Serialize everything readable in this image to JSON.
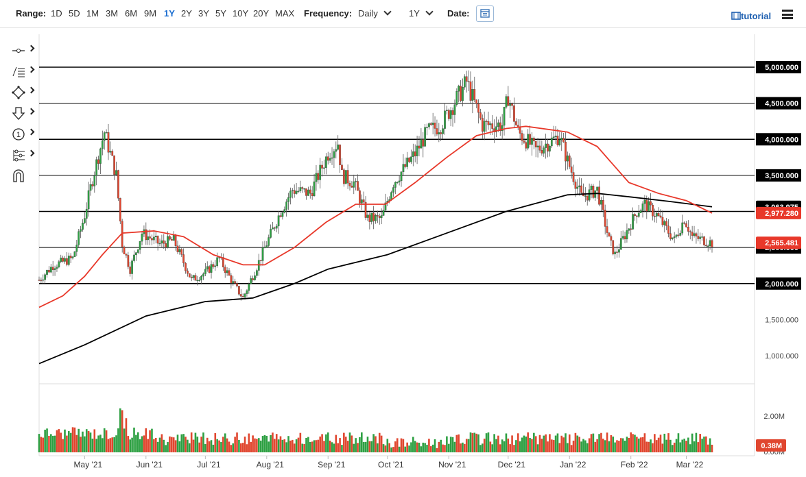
{
  "toolbar": {
    "range_label": "Range:",
    "ranges": [
      "1D",
      "5D",
      "1M",
      "3M",
      "6M",
      "9M",
      "1Y",
      "2Y",
      "3Y",
      "5Y",
      "10Y",
      "20Y",
      "MAX"
    ],
    "active_range": "1Y",
    "frequency_label": "Frequency:",
    "frequency_value": "Daily",
    "period_value": "1Y",
    "date_label": "Date:",
    "tutorial_label": "tutorial"
  },
  "tools": [
    "line-tool-icon",
    "fibonacci-tool-icon",
    "shape-tool-icon",
    "arrow-tool-icon",
    "annotation-tool-icon",
    "indicator-tool-icon",
    "magnet-tool-icon"
  ],
  "chart_data": {
    "type": "candlestick",
    "x_start": "2021-04-08",
    "x_end": "2022-03-14",
    "x_ticks": [
      "May '21",
      "Jun '21",
      "Jul '21",
      "Aug '21",
      "Sep '21",
      "Oct '21",
      "Nov '21",
      "Dec '21",
      "Jan '22",
      "Feb '22",
      "Mar '22"
    ],
    "y_ticks": [
      "5,000.000",
      "4,500.000",
      "4,000.000",
      "3,500.000",
      "3,000.000",
      "2,500.000",
      "2,000.000",
      "1,500.000",
      "1,000.000"
    ],
    "y_range": [
      490,
      5400
    ],
    "horizontal_lines": [
      5000,
      4500,
      4000,
      3500,
      3000,
      2500,
      2000
    ],
    "price_labels": [
      {
        "value": "3,063.975",
        "color": "#000000"
      },
      {
        "value": "2,977.280",
        "color": "#e8382a"
      },
      {
        "value": "2,565.481",
        "color": "#e8382a"
      }
    ],
    "colors": {
      "up": "#2ea043",
      "down": "#e0462f",
      "ma_short": "#e8382a",
      "ma_long": "#000000"
    },
    "key_points": [
      [
        "2021-04-08",
        2050
      ],
      [
        "2021-04-15",
        2250
      ],
      [
        "2021-04-25",
        2350
      ],
      [
        "2021-05-01",
        2950
      ],
      [
        "2021-05-05",
        3450
      ],
      [
        "2021-05-11",
        4100
      ],
      [
        "2021-05-17",
        3500
      ],
      [
        "2021-05-20",
        2550
      ],
      [
        "2021-05-24",
        2200
      ],
      [
        "2021-05-30",
        2700
      ],
      [
        "2021-06-08",
        2550
      ],
      [
        "2021-06-15",
        2600
      ],
      [
        "2021-06-24",
        2050
      ],
      [
        "2021-07-01",
        2150
      ],
      [
        "2021-07-08",
        2350
      ],
      [
        "2021-07-15",
        2000
      ],
      [
        "2021-07-20",
        1800
      ],
      [
        "2021-07-28",
        2300
      ],
      [
        "2021-08-08",
        3000
      ],
      [
        "2021-08-14",
        3300
      ],
      [
        "2021-08-23",
        3250
      ],
      [
        "2021-09-01",
        3800
      ],
      [
        "2021-09-06",
        3950
      ],
      [
        "2021-09-08",
        3500
      ],
      [
        "2021-09-14",
        3400
      ],
      [
        "2021-09-21",
        2900
      ],
      [
        "2021-09-28",
        2900
      ],
      [
        "2021-10-04",
        3400
      ],
      [
        "2021-10-15",
        3800
      ],
      [
        "2021-10-21",
        4100
      ],
      [
        "2021-10-28",
        4200
      ],
      [
        "2021-11-08",
        4700
      ],
      [
        "2021-11-10",
        4800
      ],
      [
        "2021-11-18",
        4200
      ],
      [
        "2021-11-28",
        4200
      ],
      [
        "2021-12-01",
        4600
      ],
      [
        "2021-12-06",
        4100
      ],
      [
        "2021-12-15",
        3850
      ],
      [
        "2021-12-27",
        4050
      ],
      [
        "2021-12-31",
        3700
      ],
      [
        "2022-01-07",
        3200
      ],
      [
        "2022-01-15",
        3300
      ],
      [
        "2022-01-21",
        2600
      ],
      [
        "2022-01-24",
        2400
      ],
      [
        "2022-02-04",
        3000
      ],
      [
        "2022-02-08",
        3100
      ],
      [
        "2022-02-14",
        2950
      ],
      [
        "2022-02-23",
        2600
      ],
      [
        "2022-02-28",
        2900
      ],
      [
        "2022-03-04",
        2650
      ],
      [
        "2022-03-14",
        2565
      ]
    ],
    "ma_short_points": [
      [
        "2021-04-08",
        1670
      ],
      [
        "2021-04-20",
        1830
      ],
      [
        "2021-05-01",
        2100
      ],
      [
        "2021-05-10",
        2400
      ],
      [
        "2021-05-20",
        2700
      ],
      [
        "2021-06-05",
        2730
      ],
      [
        "2021-06-20",
        2650
      ],
      [
        "2021-07-05",
        2400
      ],
      [
        "2021-07-20",
        2260
      ],
      [
        "2021-07-31",
        2260
      ],
      [
        "2021-08-15",
        2500
      ],
      [
        "2021-08-31",
        2850
      ],
      [
        "2021-09-15",
        3100
      ],
      [
        "2021-09-30",
        3100
      ],
      [
        "2021-10-15",
        3400
      ],
      [
        "2021-10-31",
        3750
      ],
      [
        "2021-11-15",
        4050
      ],
      [
        "2021-11-30",
        4150
      ],
      [
        "2021-12-10",
        4180
      ],
      [
        "2021-12-31",
        4100
      ],
      [
        "2022-01-15",
        3900
      ],
      [
        "2022-01-31",
        3400
      ],
      [
        "2022-02-15",
        3250
      ],
      [
        "2022-03-01",
        3150
      ],
      [
        "2022-03-14",
        2977
      ]
    ],
    "ma_long_points": [
      [
        "2021-04-08",
        890
      ],
      [
        "2021-05-01",
        1150
      ],
      [
        "2021-06-01",
        1550
      ],
      [
        "2021-07-01",
        1750
      ],
      [
        "2021-07-25",
        1800
      ],
      [
        "2021-08-15",
        2000
      ],
      [
        "2021-09-01",
        2200
      ],
      [
        "2021-10-01",
        2400
      ],
      [
        "2021-10-31",
        2700
      ],
      [
        "2021-11-30",
        3000
      ],
      [
        "2021-12-31",
        3230
      ],
      [
        "2022-01-15",
        3250
      ],
      [
        "2022-02-01",
        3200
      ],
      [
        "2022-02-20",
        3140
      ],
      [
        "2022-03-14",
        3064
      ]
    ],
    "volume": {
      "y_ticks": [
        "2.00M"
      ],
      "y_range": [
        0,
        3.2
      ],
      "last_label": "0.38M",
      "visible_floor_label": "0.00M"
    }
  }
}
